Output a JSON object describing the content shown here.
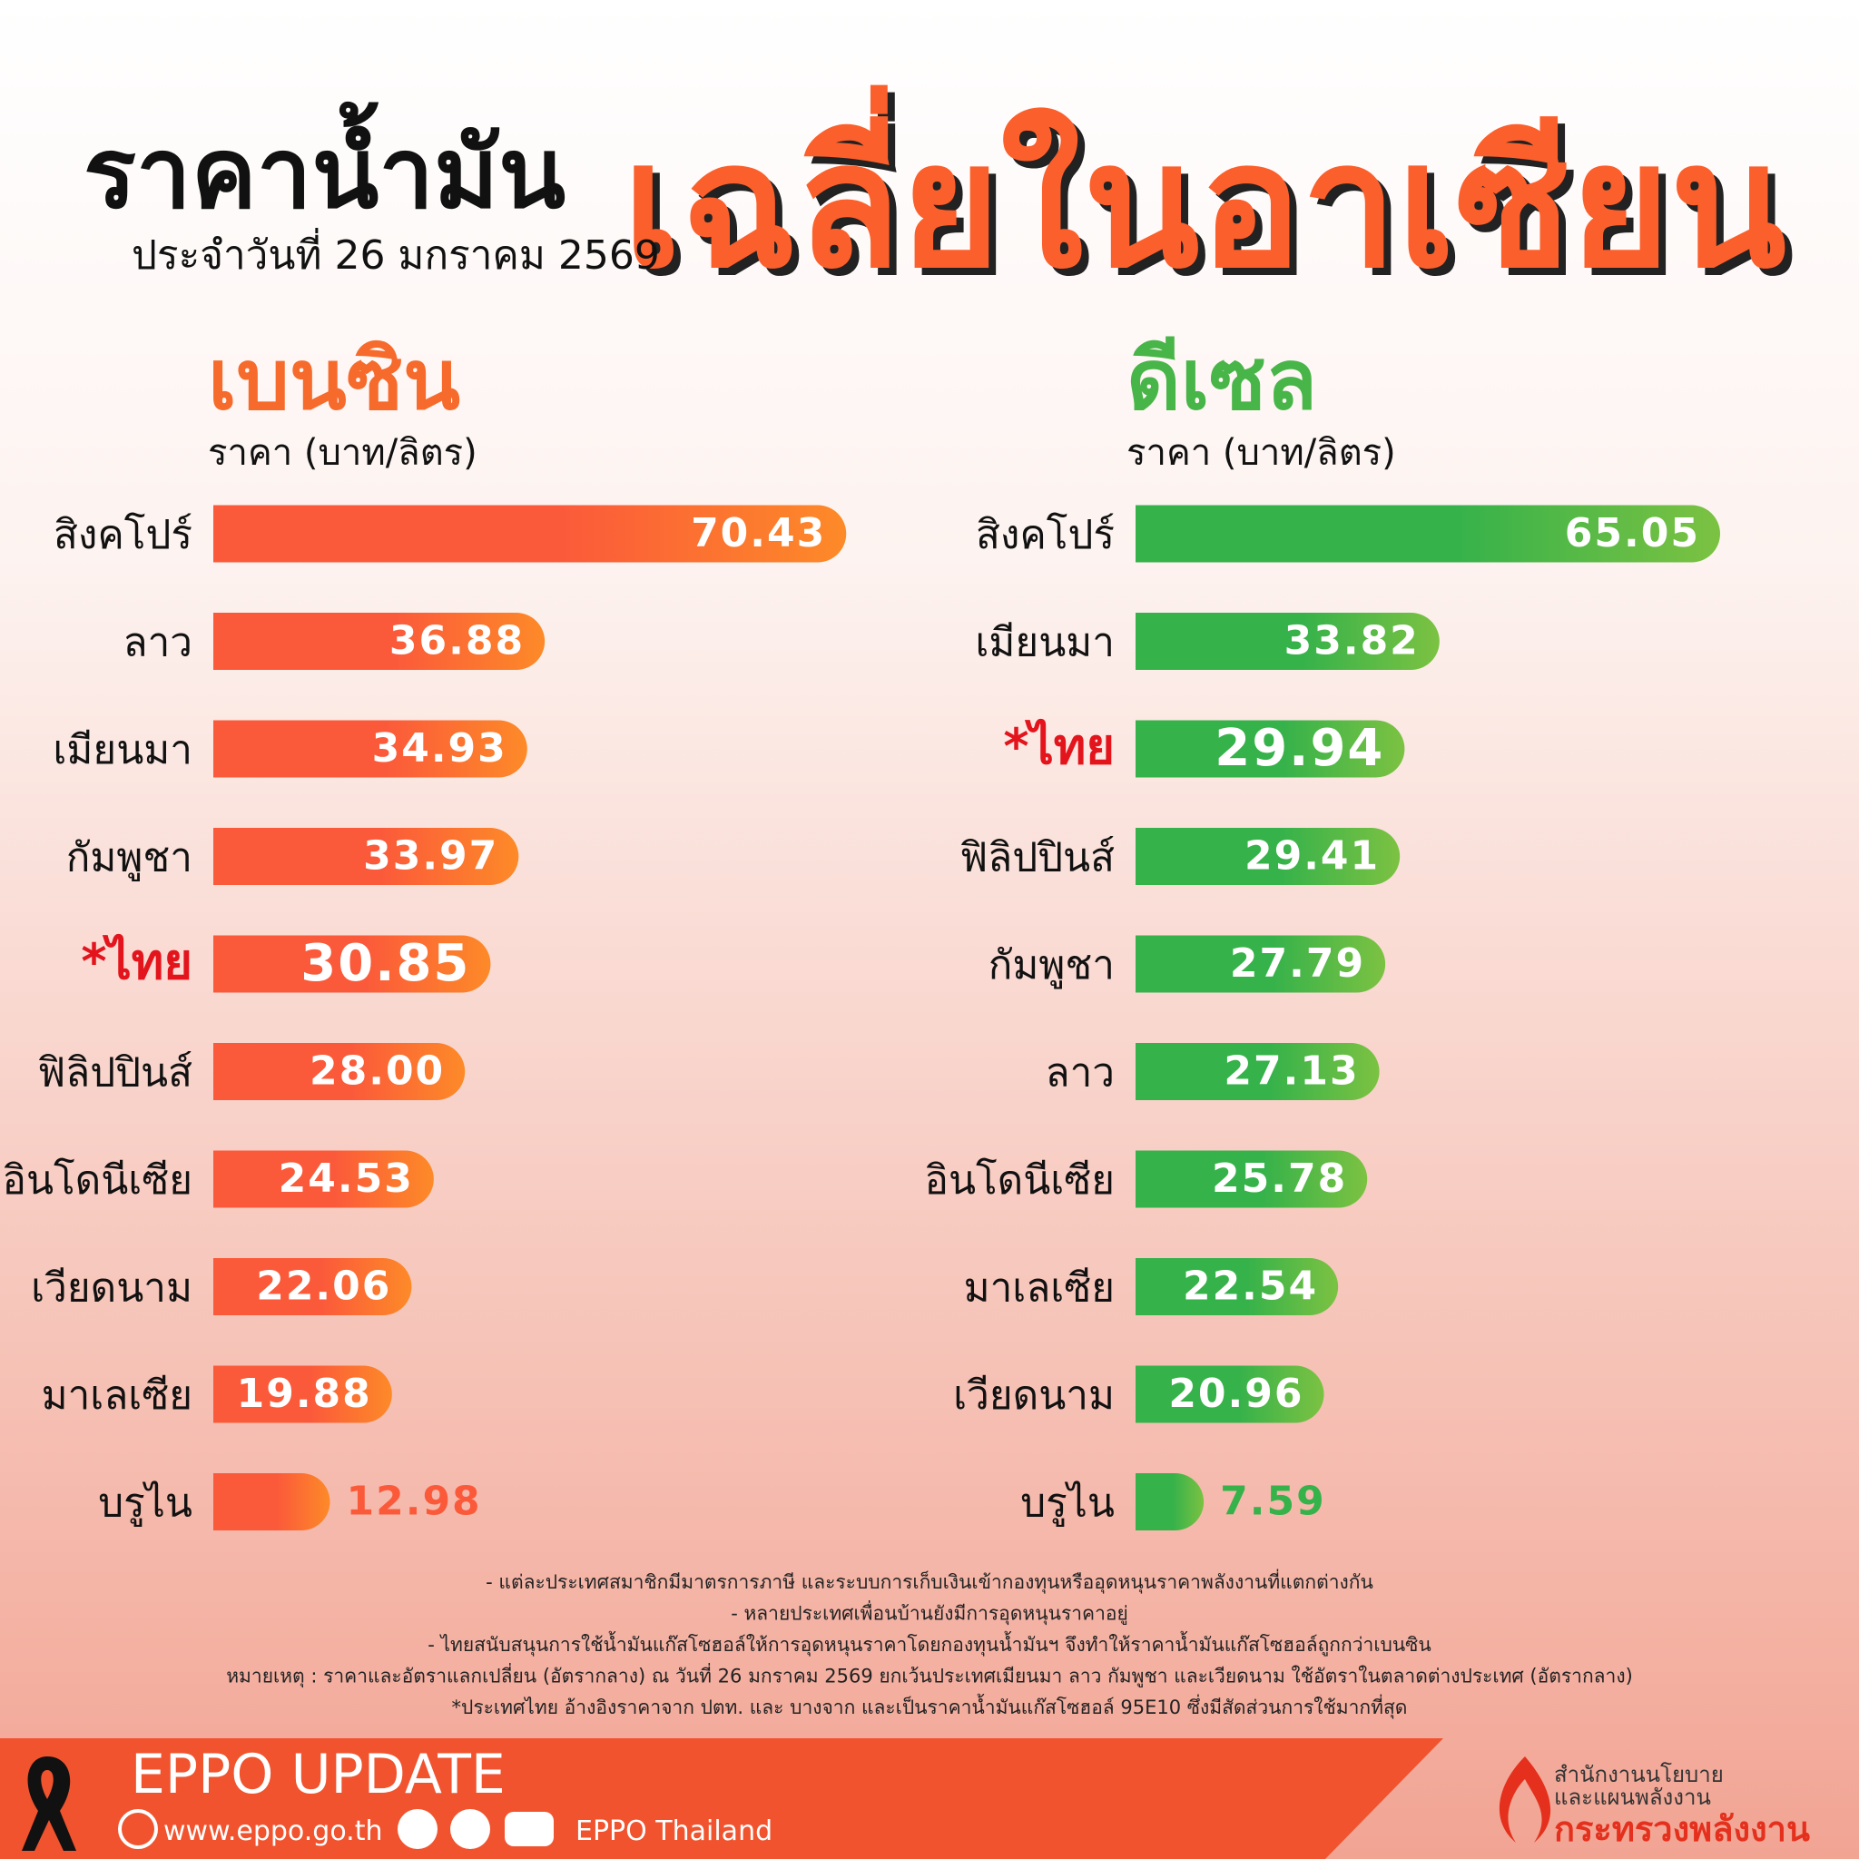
{
  "header": {
    "title": "ราคาน้ำมัน",
    "title_highlight": "เฉลี่ยในอาเซียน",
    "date": "ประจำวันที่  26 มกราคม 2569"
  },
  "chart_data": [
    {
      "type": "bar",
      "orientation": "horizontal",
      "title": "เบนซิน",
      "x_label": "ราคา (บาท/ลิตร)",
      "categories": [
        "สิงคโปร์",
        "ลาว",
        "เมียนมา",
        "กัมพูชา",
        "*ไทย",
        "ฟิลิปปินส์",
        "อินโดนีเซีย",
        "เวียดนาม",
        "มาเลเซีย",
        "บรูไน"
      ],
      "values": [
        70.43,
        36.88,
        34.93,
        33.97,
        30.85,
        28.0,
        24.53,
        22.06,
        19.88,
        12.98
      ],
      "value_labels": [
        "70.43",
        "36.88",
        "34.93",
        "33.97",
        "30.85",
        "28.00",
        "24.53",
        "22.06",
        "19.88",
        "12.98"
      ],
      "color": "#fb5a3a",
      "color_end": "#fd8a28",
      "title_color": "#f66a2c",
      "highlight": 4,
      "highlight_color": "#e3141c"
    },
    {
      "type": "bar",
      "orientation": "horizontal",
      "title": "ดีเซล",
      "x_label": "ราคา (บาท/ลิตร)",
      "categories": [
        "สิงคโปร์",
        "เมียนมา",
        "*ไทย",
        "ฟิลิปปินส์",
        "กัมพูชา",
        "ลาว",
        "อินโดนีเซีย",
        "มาเลเซีย",
        "เวียดนาม",
        "บรูไน"
      ],
      "values": [
        65.05,
        33.82,
        29.94,
        29.41,
        27.79,
        27.13,
        25.78,
        22.54,
        20.96,
        7.59
      ],
      "value_labels": [
        "65.05",
        "33.82",
        "29.94",
        "29.41",
        "27.79",
        "27.13",
        "25.78",
        "22.54",
        "20.96",
        "7.59"
      ],
      "color": "#36b24a",
      "color_end": "#7cc242",
      "title_color": "#48b548",
      "highlight": 2,
      "highlight_color": "#e3141c"
    }
  ],
  "notes": [
    "- แต่ละประเทศสมาชิกมีมาตรการภาษี และระบบการเก็บเงินเข้ากองทุนหรืออุดหนุนราคาพลังงานที่แตกต่างกัน",
    "- หลายประเทศเพื่อนบ้านยังมีการอุดหนุนราคาอยู่",
    "- ไทยสนับสนุนการใช้น้ำมันแก๊สโซฮอล์ให้การอุดหนุนราคาโดยกองทุนน้ำมันฯ จึงทำให้ราคาน้ำมันแก๊สโซฮอล์ถูกกว่าเบนซิน",
    "หมายเหตุ : ราคาและอัตราแลกเปลี่ยน (อัตรากลาง) ณ วันที่ 26 มกราคม 2569 ยกเว้นประเทศเมียนมา ลาว กัมพูชา และเวียดนาม ใช้อัตราในตลาดต่างประเทศ (อัตรากลาง)",
    "*ประเทศไทย อ้างอิงราคาจาก ปตท. และ บางจาก และเป็นราคาน้ำมันแก๊สโซฮอล์ 95E10 ซึ่งมีสัดส่วนการใช้มากที่สุด"
  ],
  "footer": {
    "title": "EPPO UPDATE",
    "website": "www.eppo.go.th",
    "social": "EPPO Thailand",
    "org_line1": "สำนักงานนโยบาย",
    "org_line2": "และแผนพลังงาน",
    "ministry": "กระทรวงพลังงาน"
  }
}
